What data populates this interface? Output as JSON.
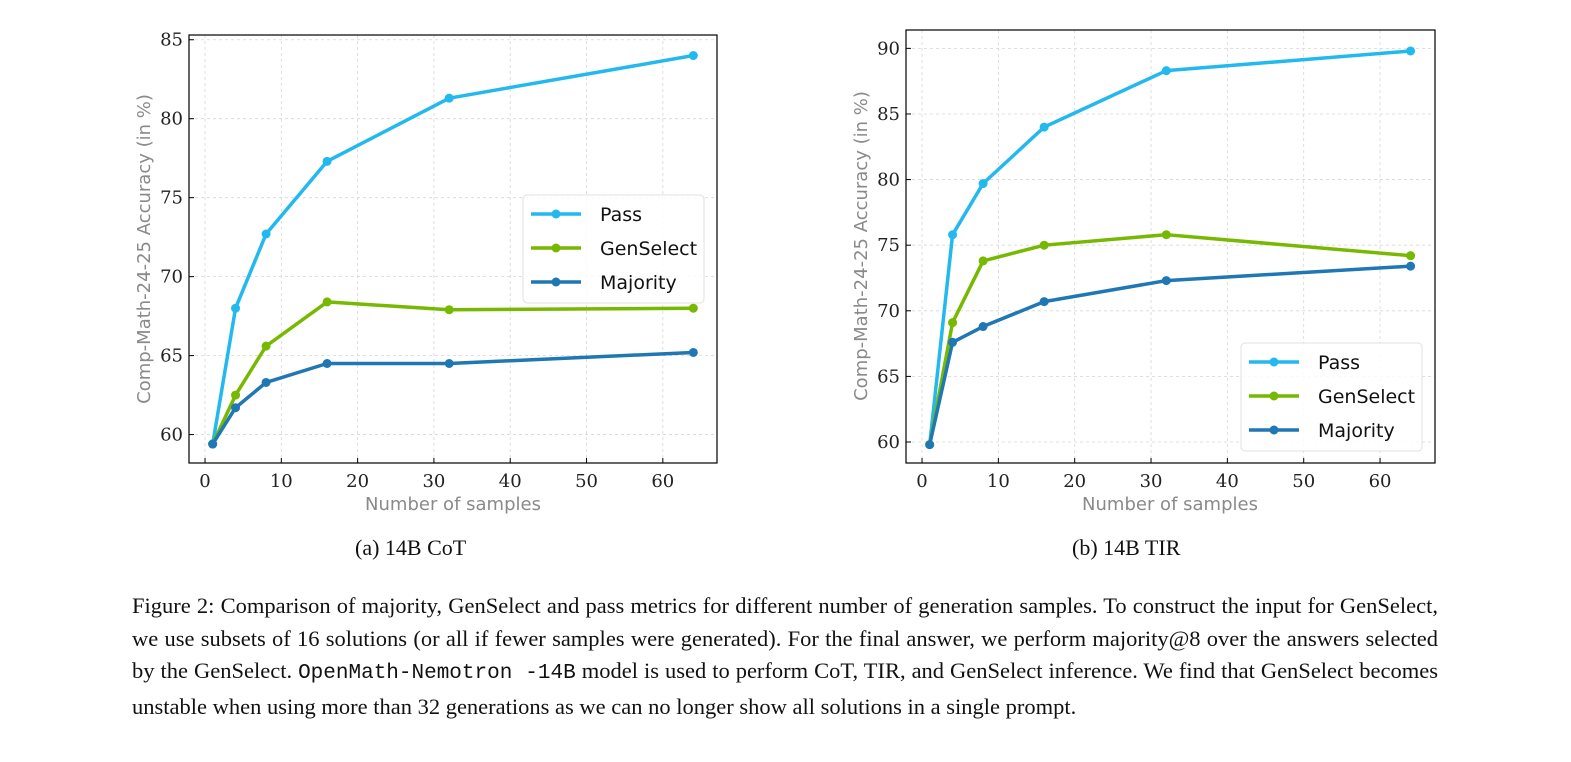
{
  "chart_data": [
    {
      "type": "line",
      "subcaption": "(a) 14B CoT",
      "xlabel": "Number of samples",
      "ylabel": "Comp-Math-24-25 Accuracy (in %)",
      "xlim": [
        -2.1,
        67.1
      ],
      "ylim": [
        58.2,
        85.3
      ],
      "xticks": [
        0,
        10,
        20,
        30,
        40,
        50,
        60
      ],
      "yticks": [
        60,
        65,
        70,
        75,
        80,
        85
      ],
      "grid": true,
      "legend_position": "center-right",
      "x": [
        1,
        4,
        8,
        16,
        32,
        64
      ],
      "series": [
        {
          "name": "Pass",
          "color": "#23b9ee",
          "values": [
            59.4,
            68.0,
            72.7,
            77.3,
            81.3,
            84.0
          ]
        },
        {
          "name": "GenSelect",
          "color": "#76b900",
          "values": [
            59.4,
            62.5,
            65.6,
            68.4,
            67.9,
            68.0
          ]
        },
        {
          "name": "Majority",
          "color": "#1f77b4",
          "values": [
            59.4,
            61.7,
            63.3,
            64.5,
            64.5,
            65.2
          ]
        }
      ]
    },
    {
      "type": "line",
      "subcaption": "(b) 14B TIR",
      "xlabel": "Number of samples",
      "ylabel": "Comp-Math-24-25 Accuracy (in %)",
      "xlim": [
        -2.1,
        67.2
      ],
      "ylim": [
        58.4,
        91.4
      ],
      "xticks": [
        0,
        10,
        20,
        30,
        40,
        50,
        60
      ],
      "yticks": [
        60,
        65,
        70,
        75,
        80,
        85,
        90
      ],
      "grid": true,
      "legend_position": "lower-right",
      "x": [
        1,
        4,
        8,
        16,
        32,
        64
      ],
      "series": [
        {
          "name": "Pass",
          "color": "#23b9ee",
          "values": [
            59.8,
            75.8,
            79.7,
            84.0,
            88.3,
            89.8
          ]
        },
        {
          "name": "GenSelect",
          "color": "#76b900",
          "values": [
            59.8,
            69.1,
            73.8,
            75.0,
            75.8,
            74.2
          ]
        },
        {
          "name": "Majority",
          "color": "#1f77b4",
          "values": [
            59.8,
            67.6,
            68.8,
            70.7,
            72.3,
            73.4
          ]
        }
      ]
    }
  ],
  "caption": {
    "label": "Figure 2:",
    "text_before": "Comparison of majority, GenSelect and pass metrics for different number of generation samples. To construct the input for GenSelect, we use subsets of 16 solutions (or all if fewer samples were generated). For the final answer, we perform majority@8 over the answers selected by the GenSelect.",
    "code": "OpenMath-Nemotron -14B",
    "text_after": "model is used to perform CoT, TIR, and GenSelect inference. We find that GenSelect becomes unstable when using more than 32 generations as we can no longer show all solutions in a single prompt."
  }
}
